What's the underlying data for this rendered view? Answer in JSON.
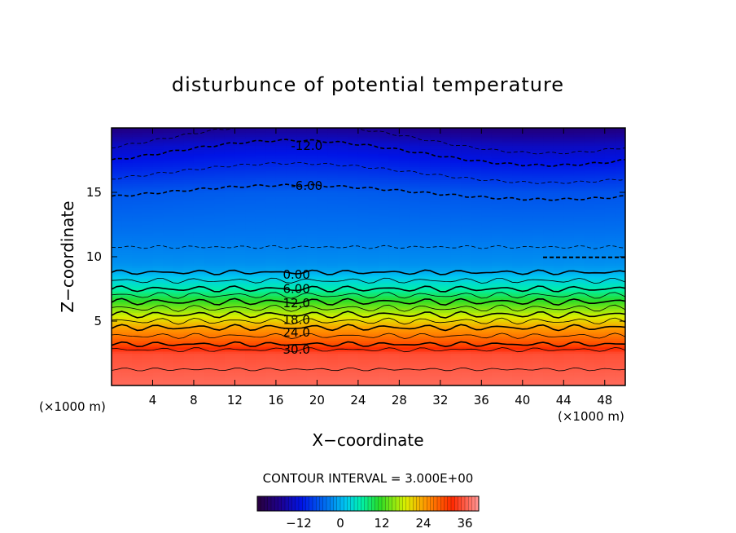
{
  "chart_data": {
    "type": "heatmap",
    "title": "disturbunce of potential temperature",
    "xlabel": "X−coordinate",
    "ylabel": "Z−coordinate",
    "x_unit": "(×1000 m)",
    "x_unit_right": "(×1000 m)",
    "xlim": [
      0,
      50
    ],
    "ylim": [
      0,
      20
    ],
    "x_ticks": [
      4,
      8,
      12,
      16,
      20,
      24,
      28,
      32,
      36,
      40,
      44,
      48
    ],
    "x_tick_labels": [
      "4",
      "8",
      "12",
      "16",
      "20",
      "24",
      "28",
      "32",
      "36",
      "40",
      "44",
      "48"
    ],
    "y_ticks": [
      5,
      10,
      15
    ],
    "y_tick_labels": [
      "5",
      "10",
      "15"
    ],
    "contour_interval_text": "CONTOUR INTERVAL = 3.000E+00",
    "contour_interval": 3,
    "contour_labels": [
      {
        "text": "-12.0",
        "value": -12,
        "x": 19,
        "z": 18.6
      },
      {
        "text": "-6.00",
        "value": -6,
        "x": 19,
        "z": 15.5
      },
      {
        "text": "0.00",
        "value": 0,
        "x": 18,
        "z": 8.6
      },
      {
        "text": "6.00",
        "value": 6,
        "x": 18,
        "z": 7.5
      },
      {
        "text": "12.0",
        "value": 12,
        "x": 18,
        "z": 6.4
      },
      {
        "text": "18.0",
        "value": 18,
        "x": 18,
        "z": 5.1
      },
      {
        "text": "24.0",
        "value": 24,
        "x": 18,
        "z": 4.1
      },
      {
        "text": "30.0",
        "value": 30,
        "x": 18,
        "z": 2.8
      }
    ],
    "colorbar": {
      "min": -24,
      "max": 40,
      "ticks": [
        -12,
        0,
        12,
        24,
        36
      ],
      "tick_labels": [
        "−12",
        "0",
        "12",
        "24",
        "36"
      ]
    },
    "profile": {
      "z": [
        0,
        2.5,
        3.2,
        4.5,
        6,
        7.5,
        9,
        9.5,
        12,
        15,
        17,
        18.6,
        20
      ],
      "value": [
        37,
        35,
        30,
        24,
        15,
        6,
        -1,
        -2,
        -4,
        -6,
        -10,
        -13,
        -18
      ]
    }
  }
}
